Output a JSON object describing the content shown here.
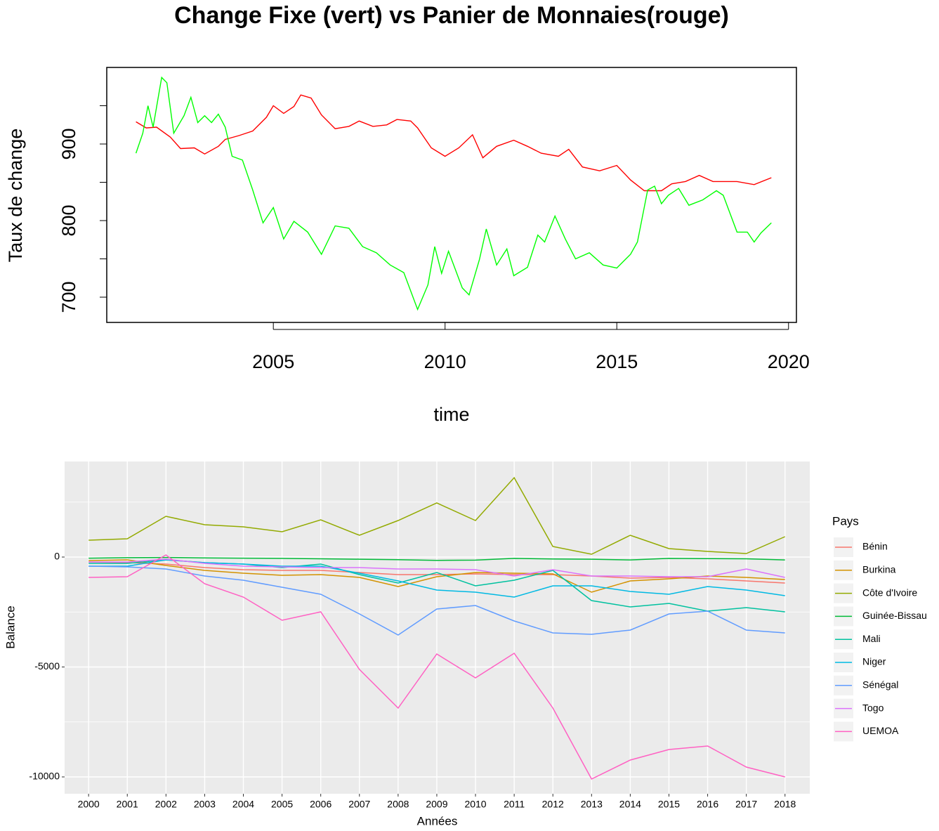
{
  "chart_data": [
    {
      "type": "line",
      "title": "Change Fixe (vert) vs Panier de Monnaies(rouge)",
      "x_label": "time",
      "y_label": "Taux de change",
      "xlim": [
        2000.15,
        2020.23
      ],
      "xticks": [
        2005,
        2010,
        2015,
        2020
      ],
      "ylim": [
        667,
        1000
      ],
      "yticks": [
        700,
        800,
        900
      ],
      "yminor": [
        750,
        850,
        950
      ],
      "grid": false,
      "series": [
        {
          "color": "#ff0000",
          "x": [
            2001.0,
            2001.3,
            2001.6,
            2002.0,
            2002.3,
            2002.7,
            2003.0,
            2003.4,
            2003.6,
            2004.0,
            2004.4,
            2004.8,
            2005.0,
            2005.3,
            2005.6,
            2005.8,
            2006.1,
            2006.4,
            2006.8,
            2007.2,
            2007.5,
            2007.9,
            2008.3,
            2008.6,
            2009.0,
            2009.2,
            2009.6,
            2010.0,
            2010.4,
            2010.8,
            2011.1,
            2011.5,
            2012.0,
            2012.4,
            2012.8,
            2013.3,
            2013.6,
            2014.0,
            2014.5,
            2015.0,
            2015.4,
            2015.8,
            2016.3,
            2016.6,
            2017.0,
            2017.4,
            2017.8,
            2018.5,
            2019.0,
            2019.5
          ],
          "values": [
            929,
            921,
            922,
            909,
            894,
            895,
            887,
            897,
            906,
            911,
            917,
            935,
            950,
            940,
            949,
            964,
            960,
            938,
            920,
            923,
            930,
            923,
            925,
            932,
            930,
            921,
            895,
            884,
            895,
            912,
            882,
            897,
            905,
            897,
            888,
            884,
            893,
            870,
            865,
            872,
            853,
            839,
            839,
            848,
            851,
            859,
            851,
            851,
            847,
            856
          ]
        },
        {
          "color": "#00ff00",
          "x": [
            2001.0,
            2001.2,
            2001.35,
            2001.5,
            2001.75,
            2001.9,
            2002.1,
            2002.4,
            2002.6,
            2002.8,
            2003.0,
            2003.2,
            2003.4,
            2003.6,
            2003.8,
            2004.1,
            2004.4,
            2004.7,
            2005.0,
            2005.3,
            2005.6,
            2006.0,
            2006.4,
            2006.8,
            2007.2,
            2007.6,
            2008.0,
            2008.4,
            2008.8,
            2009.2,
            2009.5,
            2009.7,
            2009.9,
            2010.1,
            2010.5,
            2010.7,
            2011.0,
            2011.2,
            2011.5,
            2011.8,
            2012.0,
            2012.4,
            2012.7,
            2012.9,
            2013.2,
            2013.5,
            2013.8,
            2014.2,
            2014.6,
            2015.0,
            2015.4,
            2015.6,
            2015.9,
            2016.1,
            2016.3,
            2016.5,
            2016.8,
            2017.1,
            2017.5,
            2017.9,
            2018.1,
            2018.5,
            2018.8,
            2019.0,
            2019.2,
            2019.5
          ],
          "values": [
            888,
            914,
            950,
            922,
            987,
            980,
            914,
            937,
            961,
            928,
            937,
            928,
            939,
            922,
            884,
            879,
            840,
            797,
            817,
            776,
            799,
            785,
            756,
            793,
            790,
            766,
            758,
            742,
            732,
            684,
            716,
            766,
            731,
            760,
            712,
            703,
            749,
            789,
            742,
            763,
            728,
            739,
            781,
            772,
            806,
            776,
            750,
            758,
            742,
            738,
            756,
            772,
            840,
            845,
            822,
            833,
            842,
            820,
            827,
            839,
            833,
            785,
            785,
            772,
            784,
            797
          ]
        }
      ]
    },
    {
      "type": "line",
      "x_label": "Années",
      "y_label": "Balance",
      "legend_title": "Pays",
      "legend": "right",
      "xlim": [
        1999.38,
        2018.64
      ],
      "xticks": [
        2000,
        2001,
        2002,
        2003,
        2004,
        2005,
        2006,
        2007,
        2008,
        2009,
        2010,
        2011,
        2012,
        2013,
        2014,
        2015,
        2016,
        2017,
        2018
      ],
      "ylim": [
        -10767,
        4345
      ],
      "yticks": [
        -10000,
        -5000,
        0
      ],
      "yminor": [
        -7500,
        -2500,
        2500
      ],
      "grid": true,
      "x": [
        2000,
        2001,
        2002,
        2003,
        2004,
        2005,
        2006,
        2007,
        2008,
        2009,
        2010,
        2011,
        2012,
        2013,
        2014,
        2015,
        2016,
        2017,
        2018
      ],
      "series": [
        {
          "name": "Bénin",
          "color": "#F8766D",
          "values": [
            -224,
            -256,
            -319,
            -479,
            -575,
            -607,
            -607,
            -703,
            -799,
            -799,
            -767,
            -799,
            -799,
            -863,
            -958,
            -927,
            -990,
            -1086,
            -1182
          ]
        },
        {
          "name": "Burkina",
          "color": "#D39200",
          "values": [
            -160,
            -128,
            -383,
            -607,
            -735,
            -831,
            -799,
            -927,
            -1342,
            -895,
            -703,
            -735,
            -767,
            -1597,
            -1086,
            -990,
            -863,
            -927,
            -1022
          ]
        },
        {
          "name": "Côte d'Ivoire",
          "color": "#93AA00",
          "values": [
            767,
            831,
            1853,
            1470,
            1374,
            1150,
            1693,
            990,
            1661,
            2460,
            1661,
            3610,
            479,
            128,
            990,
            383,
            256,
            160,
            927
          ]
        },
        {
          "name": "Guinée-Bissau",
          "color": "#00BA38",
          "values": [
            -50,
            -30,
            -20,
            -40,
            -50,
            -60,
            -80,
            -100,
            -120,
            -150,
            -140,
            -60,
            -90,
            -100,
            -130,
            -60,
            -70,
            -80,
            -130
          ]
        },
        {
          "name": "Mali",
          "color": "#00C19F",
          "values": [
            -288,
            -288,
            -128,
            -256,
            -319,
            -479,
            -319,
            -799,
            -1182,
            -703,
            -1310,
            -1054,
            -607,
            -1981,
            -2268,
            -2109,
            -2460,
            -2300,
            -2492
          ]
        },
        {
          "name": "Niger",
          "color": "#00B9E3",
          "values": [
            -415,
            -415,
            -128,
            -256,
            -319,
            -415,
            -415,
            -735,
            -1086,
            -1502,
            -1597,
            -1821,
            -1310,
            -1310,
            -1565,
            -1693,
            -1342,
            -1502,
            -1757
          ]
        },
        {
          "name": "Sénégal",
          "color": "#619CFF",
          "values": [
            -415,
            -447,
            -543,
            -863,
            -1054,
            -1374,
            -1693,
            -2588,
            -3546,
            -2364,
            -2204,
            -2907,
            -3450,
            -3514,
            -3323,
            -2588,
            -2460,
            -3323,
            -3450
          ]
        },
        {
          "name": "Togo",
          "color": "#DB72FB",
          "values": [
            -224,
            -224,
            -96,
            -288,
            -415,
            -447,
            -479,
            -479,
            -543,
            -543,
            -575,
            -863,
            -575,
            -863,
            -863,
            -895,
            -895,
            -543,
            -927
          ]
        },
        {
          "name": "UEMOA",
          "color": "#FF61C3",
          "values": [
            -927,
            -895,
            96,
            -1214,
            -1821,
            -2875,
            -2492,
            -5112,
            -6869,
            -4409,
            -5495,
            -4377,
            -6869,
            -10096,
            -9233,
            -8754,
            -8594,
            -9553,
            -9999
          ]
        }
      ]
    }
  ]
}
